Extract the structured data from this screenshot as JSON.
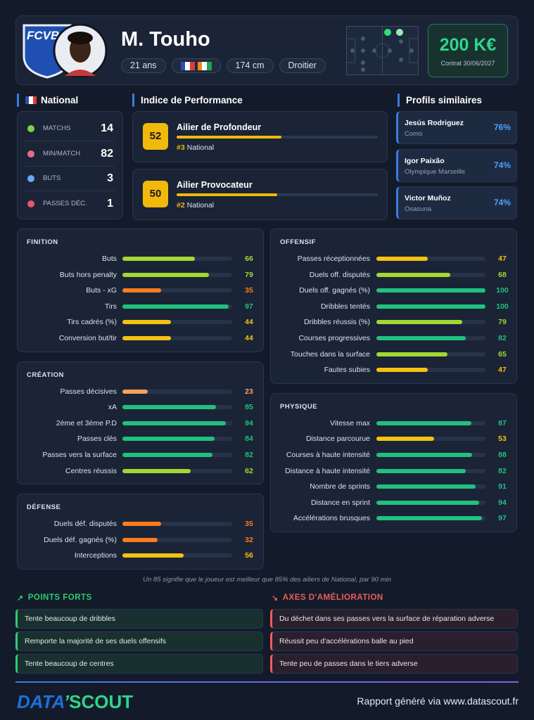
{
  "header": {
    "club": "FCVB",
    "name": "M. Touho",
    "age": "21 ans",
    "height": "174 cm",
    "foot": "Droitier",
    "value": "200 K€",
    "contract": "Contrat 30/06/2027"
  },
  "league": {
    "title": "National",
    "stats": [
      {
        "label": "MATCHS",
        "value": 14
      },
      {
        "label": "MIN/MATCH",
        "value": 82
      },
      {
        "label": "BUTS",
        "value": 3
      },
      {
        "label": "PASSES DÉC.",
        "value": 1
      }
    ]
  },
  "performance": {
    "title": "Indice de Performance",
    "items": [
      {
        "score": 52,
        "role": "Ailier de Profondeur",
        "rank": "#3",
        "league": "National"
      },
      {
        "score": 50,
        "role": "Ailier Provocateur",
        "rank": "#2",
        "league": "National"
      }
    ]
  },
  "similar": {
    "title": "Profils similaires",
    "items": [
      {
        "name": "Jesús Rodriguez",
        "club": "Como",
        "match": "76%"
      },
      {
        "name": "Igor Paixão",
        "club": "Olympique Marseille",
        "match": "74%"
      },
      {
        "name": "Victor Muñoz",
        "club": "Osasuna",
        "match": "74%"
      }
    ]
  },
  "left_column": [
    {
      "title": "FINITION",
      "rows": [
        {
          "label": "Buts",
          "value": 66
        },
        {
          "label": "Buts hors penalty",
          "value": 79
        },
        {
          "label": "Buts - xG",
          "value": 35
        },
        {
          "label": "Tirs",
          "value": 97
        },
        {
          "label": "Tirs cadrés (%)",
          "value": 44
        },
        {
          "label": "Conversion but/tir",
          "value": 44
        }
      ]
    },
    {
      "title": "CRÉATION",
      "rows": [
        {
          "label": "Passes décisives",
          "value": 23
        },
        {
          "label": "xA",
          "value": 85
        },
        {
          "label": "2ème et 3ème P.D",
          "value": 94
        },
        {
          "label": "Passes clés",
          "value": 84
        },
        {
          "label": "Passes vers la surface",
          "value": 82
        },
        {
          "label": "Centres réussis",
          "value": 62
        }
      ]
    },
    {
      "title": "DÉFENSE",
      "rows": [
        {
          "label": "Duels déf. disputés",
          "value": 35
        },
        {
          "label": "Duels déf. gagnés (%)",
          "value": 32
        },
        {
          "label": "Interceptions",
          "value": 56
        }
      ]
    }
  ],
  "right_column": [
    {
      "title": "OFFENSIF",
      "rows": [
        {
          "label": "Passes réceptionnées",
          "value": 47
        },
        {
          "label": "Duels off. disputés",
          "value": 68
        },
        {
          "label": "Duels off. gagnés (%)",
          "value": 100
        },
        {
          "label": "Dribbles tentés",
          "value": 100
        },
        {
          "label": "Dribbles réussis (%)",
          "value": 79
        },
        {
          "label": "Courses progressives",
          "value": 82
        },
        {
          "label": "Touches dans la surface",
          "value": 65
        },
        {
          "label": "Fautes subies",
          "value": 47
        }
      ]
    },
    {
      "title": "PHYSIQUE",
      "rows": [
        {
          "label": "Vitesse max",
          "value": 87
        },
        {
          "label": "Distance parcourue",
          "value": 53
        },
        {
          "label": "Courses à haute intensité",
          "value": 88
        },
        {
          "label": "Distance à haute intensité",
          "value": 82
        },
        {
          "label": "Nombre de sprints",
          "value": 91
        },
        {
          "label": "Distance en sprint",
          "value": 94
        },
        {
          "label": "Accélérations brusques",
          "value": 97
        }
      ]
    }
  ],
  "footnote": "Un 85 signifie que le joueur est meilleur que 85% des ailiers de National, par 90 min",
  "strengths": {
    "title": "POINTS FORTS",
    "items": [
      "Tente beaucoup de dribbles",
      "Remporte la majorité de ses duels offensifs",
      "Tente beaucoup de centres"
    ]
  },
  "weaknesses": {
    "title": "AXES D'AMÉLIORATION",
    "items": [
      "Du déchet dans ses passes vers la surface de réparation adverse",
      "Réussit peu d'accélérations balle au pied",
      "Tente peu de passes dans le tiers adverse"
    ]
  },
  "footer": {
    "brand_left": "DATA",
    "brand_right": "SCOUT",
    "text": "Rapport généré via www.datascout.fr"
  }
}
